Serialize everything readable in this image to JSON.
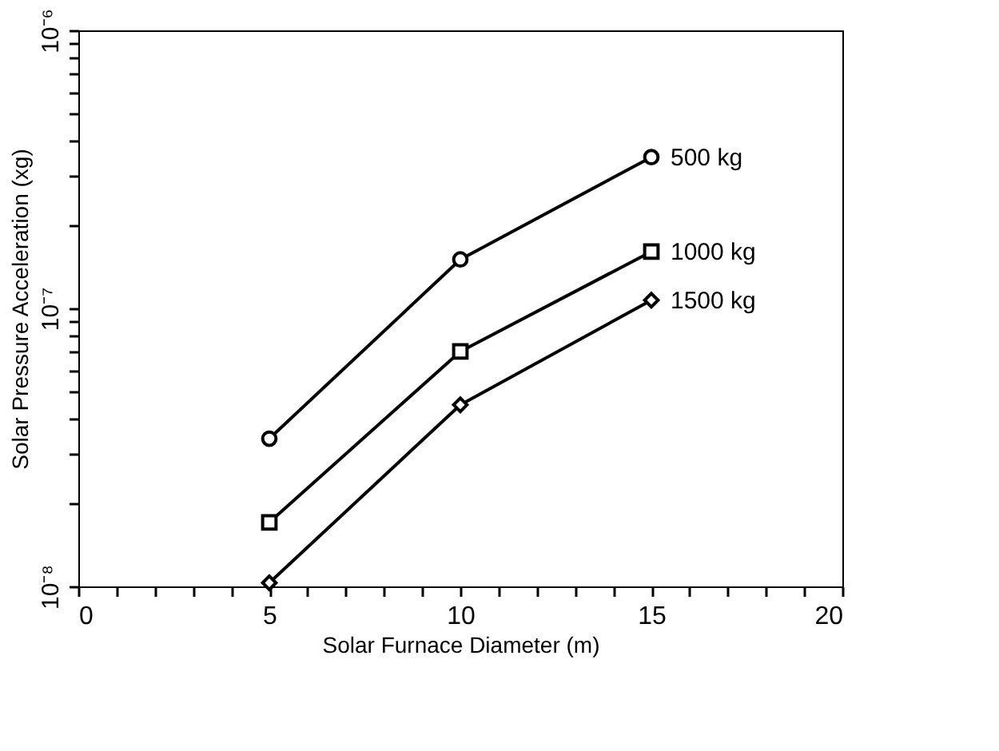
{
  "chart_data": {
    "type": "line",
    "xlabel": "Solar Furnace Diameter (m)",
    "ylabel": "Solar Pressure Acceleration (xg)",
    "x": [
      5,
      10,
      15
    ],
    "series": [
      {
        "name": "500 kg",
        "color": "#000000",
        "marker": "circle",
        "values": [
          3.4e-08,
          1.5e-07,
          3.5e-07
        ]
      },
      {
        "name": "1000 kg",
        "color": "#000000",
        "marker": "square",
        "values": [
          1.7e-08,
          7e-08,
          1.6e-07
        ]
      },
      {
        "name": "1500 kg",
        "color": "#000000",
        "marker": "diamond",
        "values": [
          1.03e-08,
          4.5e-08,
          1.07e-07
        ]
      }
    ],
    "log": "y",
    "xlim": [
      0,
      20
    ],
    "ylim": [
      1e-08,
      1e-06
    ],
    "xticks": [
      0,
      {
        "value": 1,
        "label": null
      },
      {
        "value": 2,
        "label": null
      },
      {
        "value": 3,
        "label": null
      },
      {
        "value": 4,
        "label": null
      },
      5,
      {
        "value": 6,
        "label": null
      },
      {
        "value": 7,
        "label": null
      },
      {
        "value": 8,
        "label": null
      },
      {
        "value": 9,
        "label": null
      },
      10,
      {
        "value": 11,
        "label": null
      },
      {
        "value": 12,
        "label": null
      },
      {
        "value": 13,
        "label": null
      },
      {
        "value": 14,
        "label": null
      },
      15,
      {
        "value": 16,
        "label": null
      },
      {
        "value": 17,
        "label": null
      },
      {
        "value": 18,
        "label": null
      },
      {
        "value": 19,
        "label": null
      },
      20
    ],
    "yticks": [
      {
        "value": 1e-08,
        "label": "10⁻⁸"
      },
      {
        "value": 2e-08,
        "label": null
      },
      {
        "value": 3e-08,
        "label": null
      },
      {
        "value": 4e-08,
        "label": null
      },
      {
        "value": 5e-08,
        "label": null
      },
      {
        "value": 6e-08,
        "label": null
      },
      {
        "value": 7e-08,
        "label": null
      },
      {
        "value": 8e-08,
        "label": null
      },
      {
        "value": 9e-08,
        "label": null
      },
      {
        "value": 1e-07,
        "label": "10⁻⁷"
      },
      {
        "value": 2e-07,
        "label": null
      },
      {
        "value": 3e-07,
        "label": null
      },
      {
        "value": 4e-07,
        "label": null
      },
      {
        "value": 5e-07,
        "label": null
      },
      {
        "value": 6e-07,
        "label": null
      },
      {
        "value": 7e-07,
        "label": null
      },
      {
        "value": 8e-07,
        "label": null
      },
      {
        "value": 9e-07,
        "label": null
      },
      {
        "value": 1e-06,
        "label": "10⁻⁶"
      }
    ],
    "grid": false,
    "legend": false,
    "line_style": "solid"
  }
}
